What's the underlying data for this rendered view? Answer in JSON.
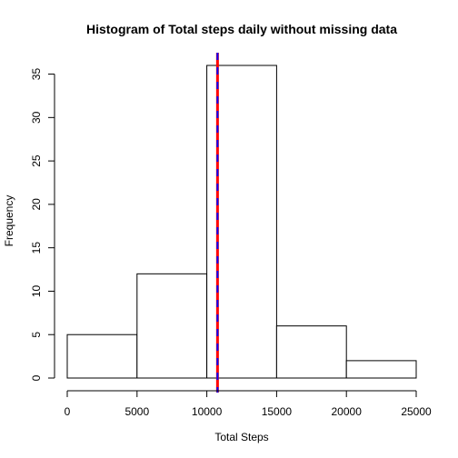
{
  "chart_data": {
    "type": "bar",
    "title": "Histogram of Total steps daily without missing data",
    "xlabel": "Total Steps",
    "ylabel": "Frequency",
    "bins": [
      {
        "from": 0,
        "to": 5000,
        "count": 5
      },
      {
        "from": 5000,
        "to": 10000,
        "count": 12
      },
      {
        "from": 10000,
        "to": 15000,
        "count": 36
      },
      {
        "from": 15000,
        "to": 20000,
        "count": 6
      },
      {
        "from": 20000,
        "to": 25000,
        "count": 2
      }
    ],
    "xlim": [
      0,
      25000
    ],
    "ylim": [
      0,
      36
    ],
    "x_ticks": [
      "0",
      "5000",
      "10000",
      "15000",
      "20000",
      "25000"
    ],
    "y_ticks": [
      "0",
      "5",
      "10",
      "15",
      "20",
      "25",
      "30",
      "35"
    ],
    "vlines": [
      {
        "x": 10766,
        "color": "#ff0000",
        "style": "solid"
      },
      {
        "x": 10766,
        "color": "#0000ff",
        "style": "dashed"
      }
    ],
    "grid": false,
    "bar_fill": "#ffffff",
    "bar_stroke": "#000000"
  }
}
